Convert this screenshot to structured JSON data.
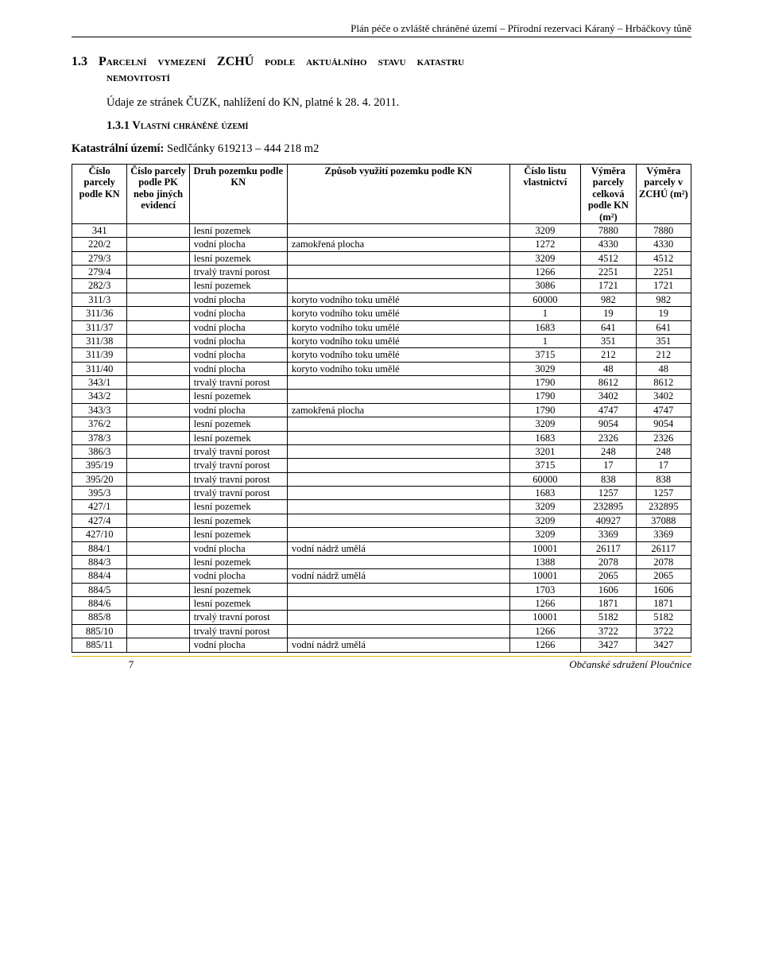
{
  "header": "Plán péče o zvláště chráněné území – Přírodní rezervaci Káraný – Hrbáčkovy tůně",
  "section": {
    "num": "1.3",
    "title_parts": [
      "Parcelní",
      "vymezení",
      "ZCHÚ",
      "podle",
      "aktuálního",
      "stavu",
      "katastru"
    ],
    "title_line2": "nemovitostí"
  },
  "body_line": "Údaje ze stránek ČUZK, nahlížení do KN, platné k 28. 4. 2011.",
  "sub": {
    "num": "1.3.1",
    "title": "Vlastní chráněné území"
  },
  "katastr": {
    "label": "Katastrální území:",
    "value": "Sedlčánky 619213 – 444 218 m2"
  },
  "table": {
    "headers": [
      "Číslo parcely podle KN",
      "Číslo parcely podle PK nebo jiných evidencí",
      "Druh pozemku podle KN",
      "Způsob využití pozemku podle KN",
      "Číslo listu vlastnictví",
      "Výměra parcely celková podle KN (m²)",
      "Výměra parcely v ZCHÚ (m²)"
    ],
    "rows": [
      [
        "341",
        "",
        "lesní pozemek",
        "",
        "3209",
        "7880",
        "7880"
      ],
      [
        "220/2",
        "",
        "vodní plocha",
        "zamokřená plocha",
        "1272",
        "4330",
        "4330"
      ],
      [
        "279/3",
        "",
        "lesní pozemek",
        "",
        "3209",
        "4512",
        "4512"
      ],
      [
        "279/4",
        "",
        "trvalý travní porost",
        "",
        "1266",
        "2251",
        "2251"
      ],
      [
        "282/3",
        "",
        "lesní pozemek",
        "",
        "3086",
        "1721",
        "1721"
      ],
      [
        "311/3",
        "",
        "vodní plocha",
        "koryto vodního toku umělé",
        "60000",
        "982",
        "982"
      ],
      [
        "311/36",
        "",
        "vodní plocha",
        "koryto vodního toku umělé",
        "1",
        "19",
        "19"
      ],
      [
        "311/37",
        "",
        "vodní plocha",
        "koryto vodního toku umělé",
        "1683",
        "641",
        "641"
      ],
      [
        "311/38",
        "",
        "vodní plocha",
        "koryto vodního toku umělé",
        "1",
        "351",
        "351"
      ],
      [
        "311/39",
        "",
        "vodní plocha",
        "koryto vodního toku umělé",
        "3715",
        "212",
        "212"
      ],
      [
        "311/40",
        "",
        "vodní plocha",
        "koryto vodního toku umělé",
        "3029",
        "48",
        "48"
      ],
      [
        "343/1",
        "",
        "trvalý travní porost",
        "",
        "1790",
        "8612",
        "8612"
      ],
      [
        "343/2",
        "",
        "lesní pozemek",
        "",
        "1790",
        "3402",
        "3402"
      ],
      [
        "343/3",
        "",
        "vodní plocha",
        "zamokřená plocha",
        "1790",
        "4747",
        "4747"
      ],
      [
        "376/2",
        "",
        "lesní pozemek",
        "",
        "3209",
        "9054",
        "9054"
      ],
      [
        "378/3",
        "",
        "lesní pozemek",
        "",
        "1683",
        "2326",
        "2326"
      ],
      [
        "386/3",
        "",
        "trvalý travní porost",
        "",
        "3201",
        "248",
        "248"
      ],
      [
        "395/19",
        "",
        "trvalý travní porost",
        "",
        "3715",
        "17",
        "17"
      ],
      [
        "395/20",
        "",
        "trvalý travní porost",
        "",
        "60000",
        "838",
        "838"
      ],
      [
        "395/3",
        "",
        "trvalý travní porost",
        "",
        "1683",
        "1257",
        "1257"
      ],
      [
        "427/1",
        "",
        "lesní pozemek",
        "",
        "3209",
        "232895",
        "232895"
      ],
      [
        "427/4",
        "",
        "lesní pozemek",
        "",
        "3209",
        "40927",
        "37088"
      ],
      [
        "427/10",
        "",
        "lesní pozemek",
        "",
        "3209",
        "3369",
        "3369"
      ],
      [
        "884/1",
        "",
        "vodní plocha",
        "vodní nádrž umělá",
        "10001",
        "26117",
        "26117"
      ],
      [
        "884/3",
        "",
        "lesní pozemek",
        "",
        "1388",
        "2078",
        "2078"
      ],
      [
        "884/4",
        "",
        "vodní plocha",
        "vodní nádrž umělá",
        "10001",
        "2065",
        "2065"
      ],
      [
        "884/5",
        "",
        "lesní pozemek",
        "",
        "1703",
        "1606",
        "1606"
      ],
      [
        "884/6",
        "",
        "lesní pozemek",
        "",
        "1266",
        "1871",
        "1871"
      ],
      [
        "885/8",
        "",
        "trvalý travní porost",
        "",
        "10001",
        "5182",
        "5182"
      ],
      [
        "885/10",
        "",
        "trvalý travní porost",
        "",
        "1266",
        "3722",
        "3722"
      ],
      [
        "885/11",
        "",
        "vodní plocha",
        "vodní nádrž umělá",
        "1266",
        "3427",
        "3427"
      ]
    ]
  },
  "footer": {
    "page": "7",
    "org": "Občanské sdružení Ploučnice"
  },
  "style": {
    "page_bg": "#ffffff",
    "text_color": "#000000",
    "rule_color": "#e6b800",
    "font_family": "Times New Roman",
    "header_fontsize": 13,
    "h1_fontsize": 16,
    "body_fontsize": 14.5,
    "table_fontsize": 12.5
  }
}
